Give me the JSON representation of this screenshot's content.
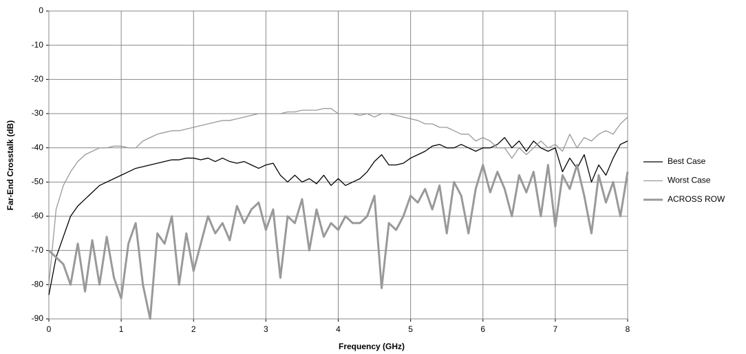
{
  "chart_data": {
    "type": "line",
    "x_label": "Frequency (GHz)",
    "y_label": "Far-End Crosstalk (dB)",
    "x": [
      0,
      0.1,
      0.2,
      0.3,
      0.4,
      0.5,
      0.6,
      0.7,
      0.8,
      0.9,
      1,
      1.1,
      1.2,
      1.3,
      1.4,
      1.5,
      1.6,
      1.7,
      1.8,
      1.9,
      2,
      2.1,
      2.2,
      2.3,
      2.4,
      2.5,
      2.6,
      2.7,
      2.8,
      2.9,
      3,
      3.1,
      3.2,
      3.3,
      3.4,
      3.5,
      3.6,
      3.7,
      3.8,
      3.9,
      4,
      4.1,
      4.2,
      4.3,
      4.4,
      4.5,
      4.6,
      4.7,
      4.8,
      4.9,
      5,
      5.1,
      5.2,
      5.3,
      5.4,
      5.5,
      5.6,
      5.7,
      5.8,
      5.9,
      6,
      6.1,
      6.2,
      6.3,
      6.4,
      6.5,
      6.6,
      6.7,
      6.8,
      6.9,
      7,
      7.1,
      7.2,
      7.3,
      7.4,
      7.5,
      7.6,
      7.7,
      7.8,
      7.9,
      8
    ],
    "series": [
      {
        "name": "Best Case",
        "color": "#000000",
        "width": 1.3,
        "values": [
          -83,
          -72,
          -66,
          -60,
          -57,
          -55,
          -53,
          -51,
          -50,
          -49,
          -48,
          -47,
          -46,
          -45.5,
          -45,
          -44.5,
          -44,
          -43.5,
          -43.5,
          -43,
          -43,
          -43.5,
          -43,
          -44,
          -43,
          -44,
          -44.5,
          -44,
          -45,
          -46,
          -45,
          -44.5,
          -48,
          -50,
          -48,
          -50,
          -49,
          -50.5,
          -48,
          -51,
          -49,
          -51,
          -50,
          -49,
          -47,
          -44,
          -42,
          -45,
          -45,
          -44.5,
          -43,
          -42,
          -41,
          -39.5,
          -39,
          -40,
          -40,
          -39,
          -40,
          -41,
          -40,
          -40,
          -39,
          -37,
          -40,
          -38,
          -41,
          -38,
          -40,
          -41,
          -40,
          -47,
          -43,
          -46,
          -42,
          -50,
          -45,
          -48,
          -43,
          -39,
          -38
        ]
      },
      {
        "name": "Worst Case",
        "color": "#999999",
        "width": 1.3,
        "values": [
          -80,
          -58,
          -51,
          -47,
          -44,
          -42,
          -41,
          -40,
          -40,
          -39.5,
          -39.5,
          -40,
          -40,
          -38,
          -37,
          -36,
          -35.5,
          -35,
          -35,
          -34.5,
          -34,
          -33.5,
          -33,
          -32.5,
          -32,
          -32,
          -31.5,
          -31,
          -30.5,
          -30,
          -30,
          -30,
          -30,
          -29.5,
          -29.5,
          -29,
          -29,
          -29,
          -28.5,
          -28.5,
          -30,
          -30,
          -30,
          -30.5,
          -30,
          -31,
          -30,
          -30,
          -30.5,
          -31,
          -31.5,
          -32,
          -33,
          -33,
          -34,
          -34,
          -35,
          -36,
          -36,
          -38,
          -37,
          -38,
          -40,
          -40,
          -43,
          -40,
          -42,
          -40,
          -38,
          -40,
          -39,
          -41,
          -36,
          -40,
          -37,
          -38,
          -36,
          -35,
          -36,
          -33,
          -31
        ]
      },
      {
        "name": "ACROSS ROW",
        "color": "#999999",
        "width": 3,
        "values": [
          -70,
          -72,
          -74,
          -80,
          -68,
          -82,
          -67,
          -80,
          -66,
          -78,
          -84,
          -68,
          -62,
          -80,
          -90,
          -65,
          -68,
          -60,
          -80,
          -65,
          -76,
          -68,
          -60,
          -65,
          -62,
          -67,
          -57,
          -62,
          -58,
          -56,
          -64,
          -58,
          -78,
          -60,
          -62,
          -55,
          -70,
          -58,
          -66,
          -62,
          -64,
          -60,
          -62,
          -62,
          -60,
          -54,
          -81,
          -62,
          -64,
          -60,
          -54,
          -56,
          -52,
          -58,
          -51,
          -65,
          -50,
          -54,
          -65,
          -52,
          -45,
          -53,
          -47,
          -52,
          -60,
          -48,
          -53,
          -47,
          -60,
          -45,
          -63,
          -48,
          -52,
          -45,
          -54,
          -65,
          -48,
          -56,
          -50,
          -60,
          -47
        ]
      }
    ],
    "xlim": [
      0,
      8
    ],
    "xticks": [
      0,
      1,
      2,
      3,
      4,
      5,
      6,
      7,
      8
    ],
    "ylim": [
      -90,
      0
    ],
    "yticks": [
      0,
      -10,
      -20,
      -30,
      -40,
      -50,
      -60,
      -70,
      -80,
      -90
    ],
    "grid": true,
    "legend": "right"
  }
}
